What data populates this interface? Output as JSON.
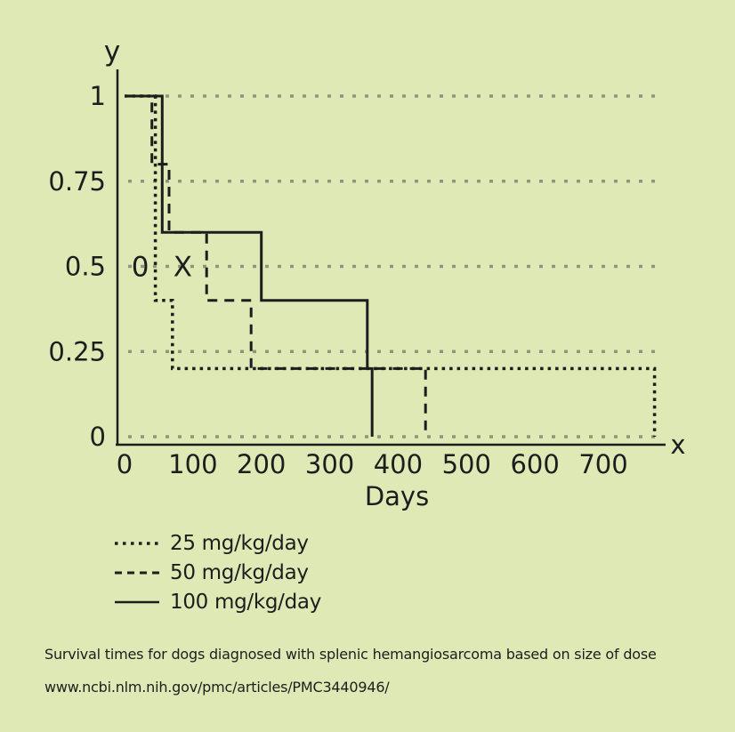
{
  "page": {
    "background": "#dfe9b6",
    "ink_color": "#1d1d1d",
    "grid_color": "#8f947c"
  },
  "chart_data": {
    "type": "line",
    "subtype": "kaplan-meier-step-survival",
    "title": "Survival times for dogs diagnosed with splenic hemangiosarcoma based on size of dose",
    "source": "www.ncbi.nlm.nih.gov/pmc/articles/PMC3440946/",
    "xlabel": "Days",
    "x_axis_letter": "x",
    "y_axis_letter": "y",
    "xlim": [
      0,
      800
    ],
    "ylim": [
      0,
      1
    ],
    "xticks": [
      0,
      100,
      200,
      300,
      400,
      500,
      600,
      700
    ],
    "yticks": [
      {
        "label": "1",
        "value": 1
      },
      {
        "label": "0.75",
        "value": 0.75
      },
      {
        "label": "0.5",
        "value": 0.5
      },
      {
        "label": "0.25",
        "value": 0.25
      },
      {
        "label": "0",
        "value": 0
      }
    ],
    "grid": "horizontal dotted gridlines at each y tick",
    "legend_position": "below-left",
    "annotations": [
      {
        "text": "0",
        "x": 23,
        "y": 0.5
      },
      {
        "text": "X",
        "x": 85,
        "y": 0.5
      }
    ],
    "series": [
      {
        "label": "25 mg/kg/day",
        "style": "dotted",
        "points": [
          [
            0,
            1
          ],
          [
            45,
            1
          ],
          [
            45,
            0.4
          ],
          [
            70,
            0.4
          ],
          [
            70,
            0.2
          ],
          [
            775,
            0.2
          ],
          [
            775,
            0
          ]
        ]
      },
      {
        "label": "50 mg/kg/day",
        "style": "dashed",
        "points": [
          [
            0,
            1
          ],
          [
            40,
            1
          ],
          [
            40,
            0.8
          ],
          [
            65,
            0.8
          ],
          [
            65,
            0.6
          ],
          [
            120,
            0.6
          ],
          [
            120,
            0.4
          ],
          [
            185,
            0.4
          ],
          [
            185,
            0.2
          ],
          [
            440,
            0.2
          ],
          [
            440,
            0
          ]
        ]
      },
      {
        "label": "100 mg/kg/day",
        "style": "solid",
        "points": [
          [
            0,
            1
          ],
          [
            55,
            1
          ],
          [
            55,
            0.6
          ],
          [
            200,
            0.6
          ],
          [
            200,
            0.4
          ],
          [
            355,
            0.4
          ],
          [
            355,
            0.2
          ],
          [
            362,
            0.2
          ],
          [
            362,
            0
          ]
        ]
      }
    ]
  }
}
